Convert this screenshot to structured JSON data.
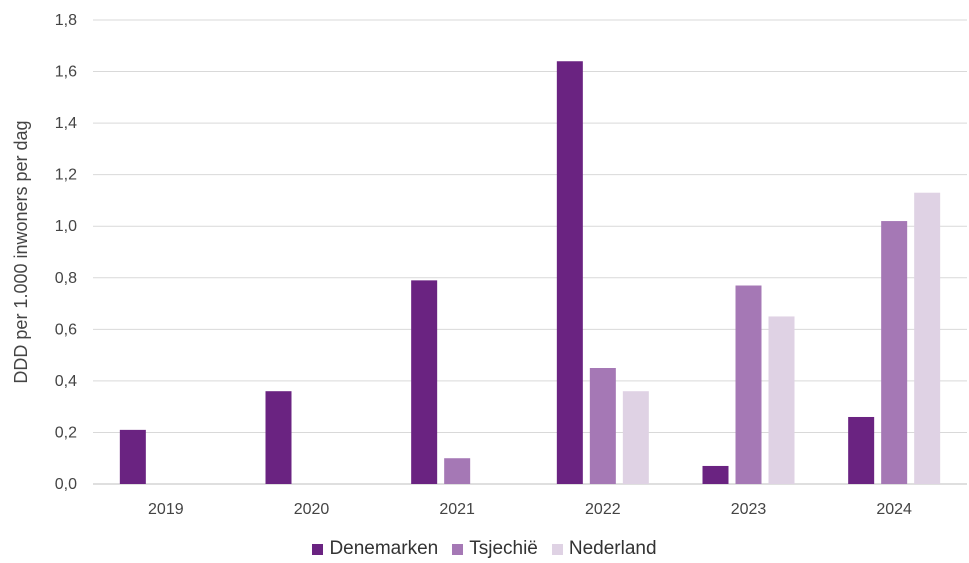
{
  "chart_data": {
    "type": "bar",
    "categories": [
      "2019",
      "2020",
      "2021",
      "2022",
      "2023",
      "2024"
    ],
    "series": [
      {
        "name": "Denemarken",
        "color": "#6a2381",
        "values": [
          0.21,
          0.36,
          0.79,
          1.64,
          0.07,
          0.26
        ]
      },
      {
        "name": "Tsjechië",
        "color": "#a578b5",
        "values": [
          0,
          0,
          0.1,
          0.45,
          0.77,
          1.02
        ]
      },
      {
        "name": "Nederland",
        "color": "#dfd2e4",
        "values": [
          0,
          0,
          0,
          0.36,
          0.65,
          1.13
        ]
      }
    ],
    "ylabel": "DDD per 1.000 inwoners per dag",
    "ylim": [
      0,
      1.8
    ],
    "yticks": [
      "0,0",
      "0,2",
      "0,4",
      "0,6",
      "0,8",
      "1,0",
      "1,2",
      "1,4",
      "1,6",
      "1,8"
    ],
    "grid": true,
    "legend_position": "bottom"
  }
}
